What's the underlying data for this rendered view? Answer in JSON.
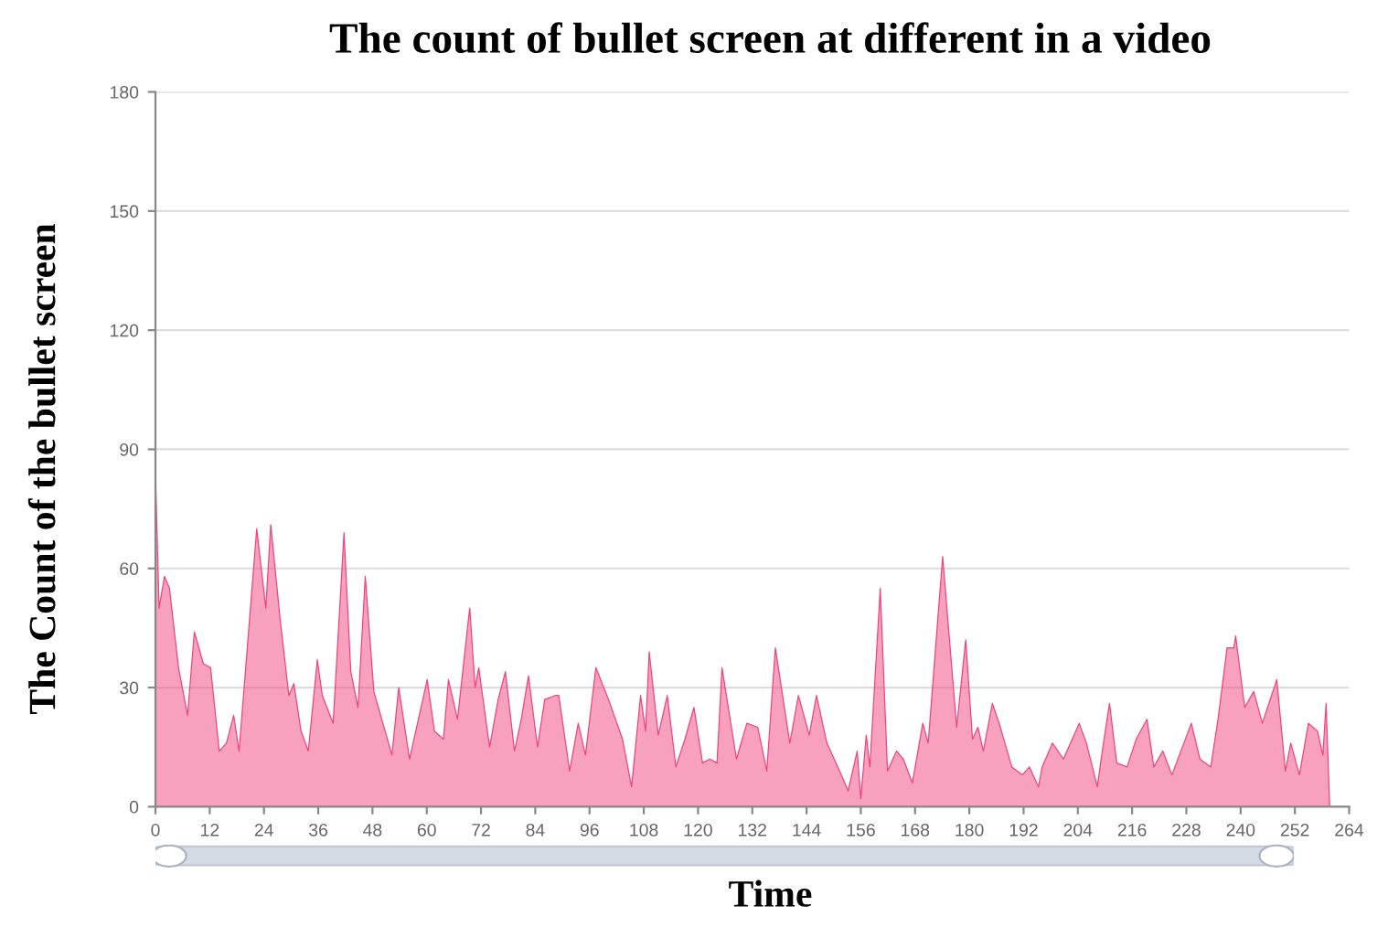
{
  "chart_data": {
    "type": "area",
    "title": "The count of bullet screen at different in a video",
    "xlabel": "Time",
    "ylabel": "The Count of the bullet screen",
    "xlim": [
      0,
      264
    ],
    "xticks": [
      0,
      12,
      24,
      36,
      48,
      60,
      72,
      84,
      96,
      108,
      120,
      132,
      144,
      156,
      168,
      180,
      192,
      204,
      216,
      228,
      240,
      252,
      264
    ],
    "ylim": [
      0,
      180
    ],
    "yticks": [
      0,
      30,
      60,
      90,
      120,
      150,
      180
    ],
    "grid": "y",
    "series": [
      {
        "color": "#f0447e",
        "x": [
          0,
          0.8,
          2.0,
          3.1,
          5.1,
          7.1,
          8.6,
          10.6,
          12.2,
          14.1,
          15.7,
          17.3,
          18.5,
          22.4,
          24.4,
          25.5,
          27.5,
          29.5,
          30.6,
          32.2,
          33.8,
          35.8,
          36.9,
          39.3,
          41.7,
          43.2,
          44.8,
          46.4,
          48.3,
          52.3,
          53.8,
          56.2,
          60.1,
          61.7,
          63.7,
          64.8,
          66.8,
          69.5,
          70.7,
          71.5,
          73.9,
          75.8,
          77.4,
          79.4,
          80.9,
          82.5,
          84.5,
          86.1,
          88.4,
          89.2,
          91.6,
          93.5,
          95.1,
          97.4,
          100.2,
          103.3,
          105.3,
          107.3,
          108.4,
          109.2,
          111.2,
          113.2,
          115.1,
          117.1,
          119.1,
          121.0,
          122.6,
          124.2,
          125.3,
          128.5,
          130.8,
          133.2,
          135.2,
          137.1,
          140.3,
          142.2,
          144.6,
          146.2,
          148.5,
          151.3,
          153.2,
          155.2,
          156.0,
          157.2,
          158.0,
          160.3,
          161.9,
          163.9,
          165.4,
          167.4,
          169.7,
          170.9,
          174.1,
          177.2,
          179.2,
          180.7,
          181.9,
          183.1,
          185.1,
          186.6,
          189.4,
          191.7,
          193.3,
          195.3,
          196.1,
          198.4,
          200.8,
          204.3,
          205.9,
          208.3,
          209.4,
          211.0,
          212.6,
          214.9,
          216.9,
          219.3,
          220.8,
          222.8,
          224.8,
          229.1,
          231.0,
          233.4,
          235.0,
          237.0,
          238.5,
          238.9,
          240.9,
          242.9,
          244.8,
          248.0,
          249.9,
          251.1,
          253.0,
          255.0,
          257.0,
          258.2,
          258.9,
          259.7
        ],
        "values": [
          84,
          50,
          58,
          55,
          35,
          23,
          44,
          36,
          35,
          14,
          16,
          23,
          14,
          70,
          50,
          71,
          48,
          28,
          31,
          19,
          14,
          37,
          28,
          21,
          69,
          34,
          25,
          58,
          29,
          13,
          30,
          12,
          32,
          19,
          17,
          32,
          22,
          50,
          30,
          35,
          15,
          27,
          34,
          14,
          22,
          33,
          15,
          27,
          28,
          28,
          9,
          21,
          13,
          35,
          27,
          17,
          5,
          28,
          19,
          39,
          18,
          28,
          10,
          17,
          25,
          11,
          12,
          11,
          35,
          12,
          21,
          20,
          9,
          40,
          16,
          28,
          18,
          28,
          16,
          9,
          4,
          14,
          2,
          18,
          10,
          55,
          9,
          14,
          12,
          6,
          21,
          16,
          63,
          20,
          42,
          17,
          20,
          14,
          26,
          21,
          10,
          8,
          10,
          5,
          10,
          16,
          12,
          21,
          16,
          5,
          14,
          26,
          11,
          10,
          17,
          22,
          10,
          14,
          8,
          21,
          12,
          10,
          22,
          40,
          40,
          43,
          25,
          29,
          21,
          32,
          9,
          16,
          8,
          21,
          19,
          13,
          26,
          0
        ]
      }
    ]
  }
}
